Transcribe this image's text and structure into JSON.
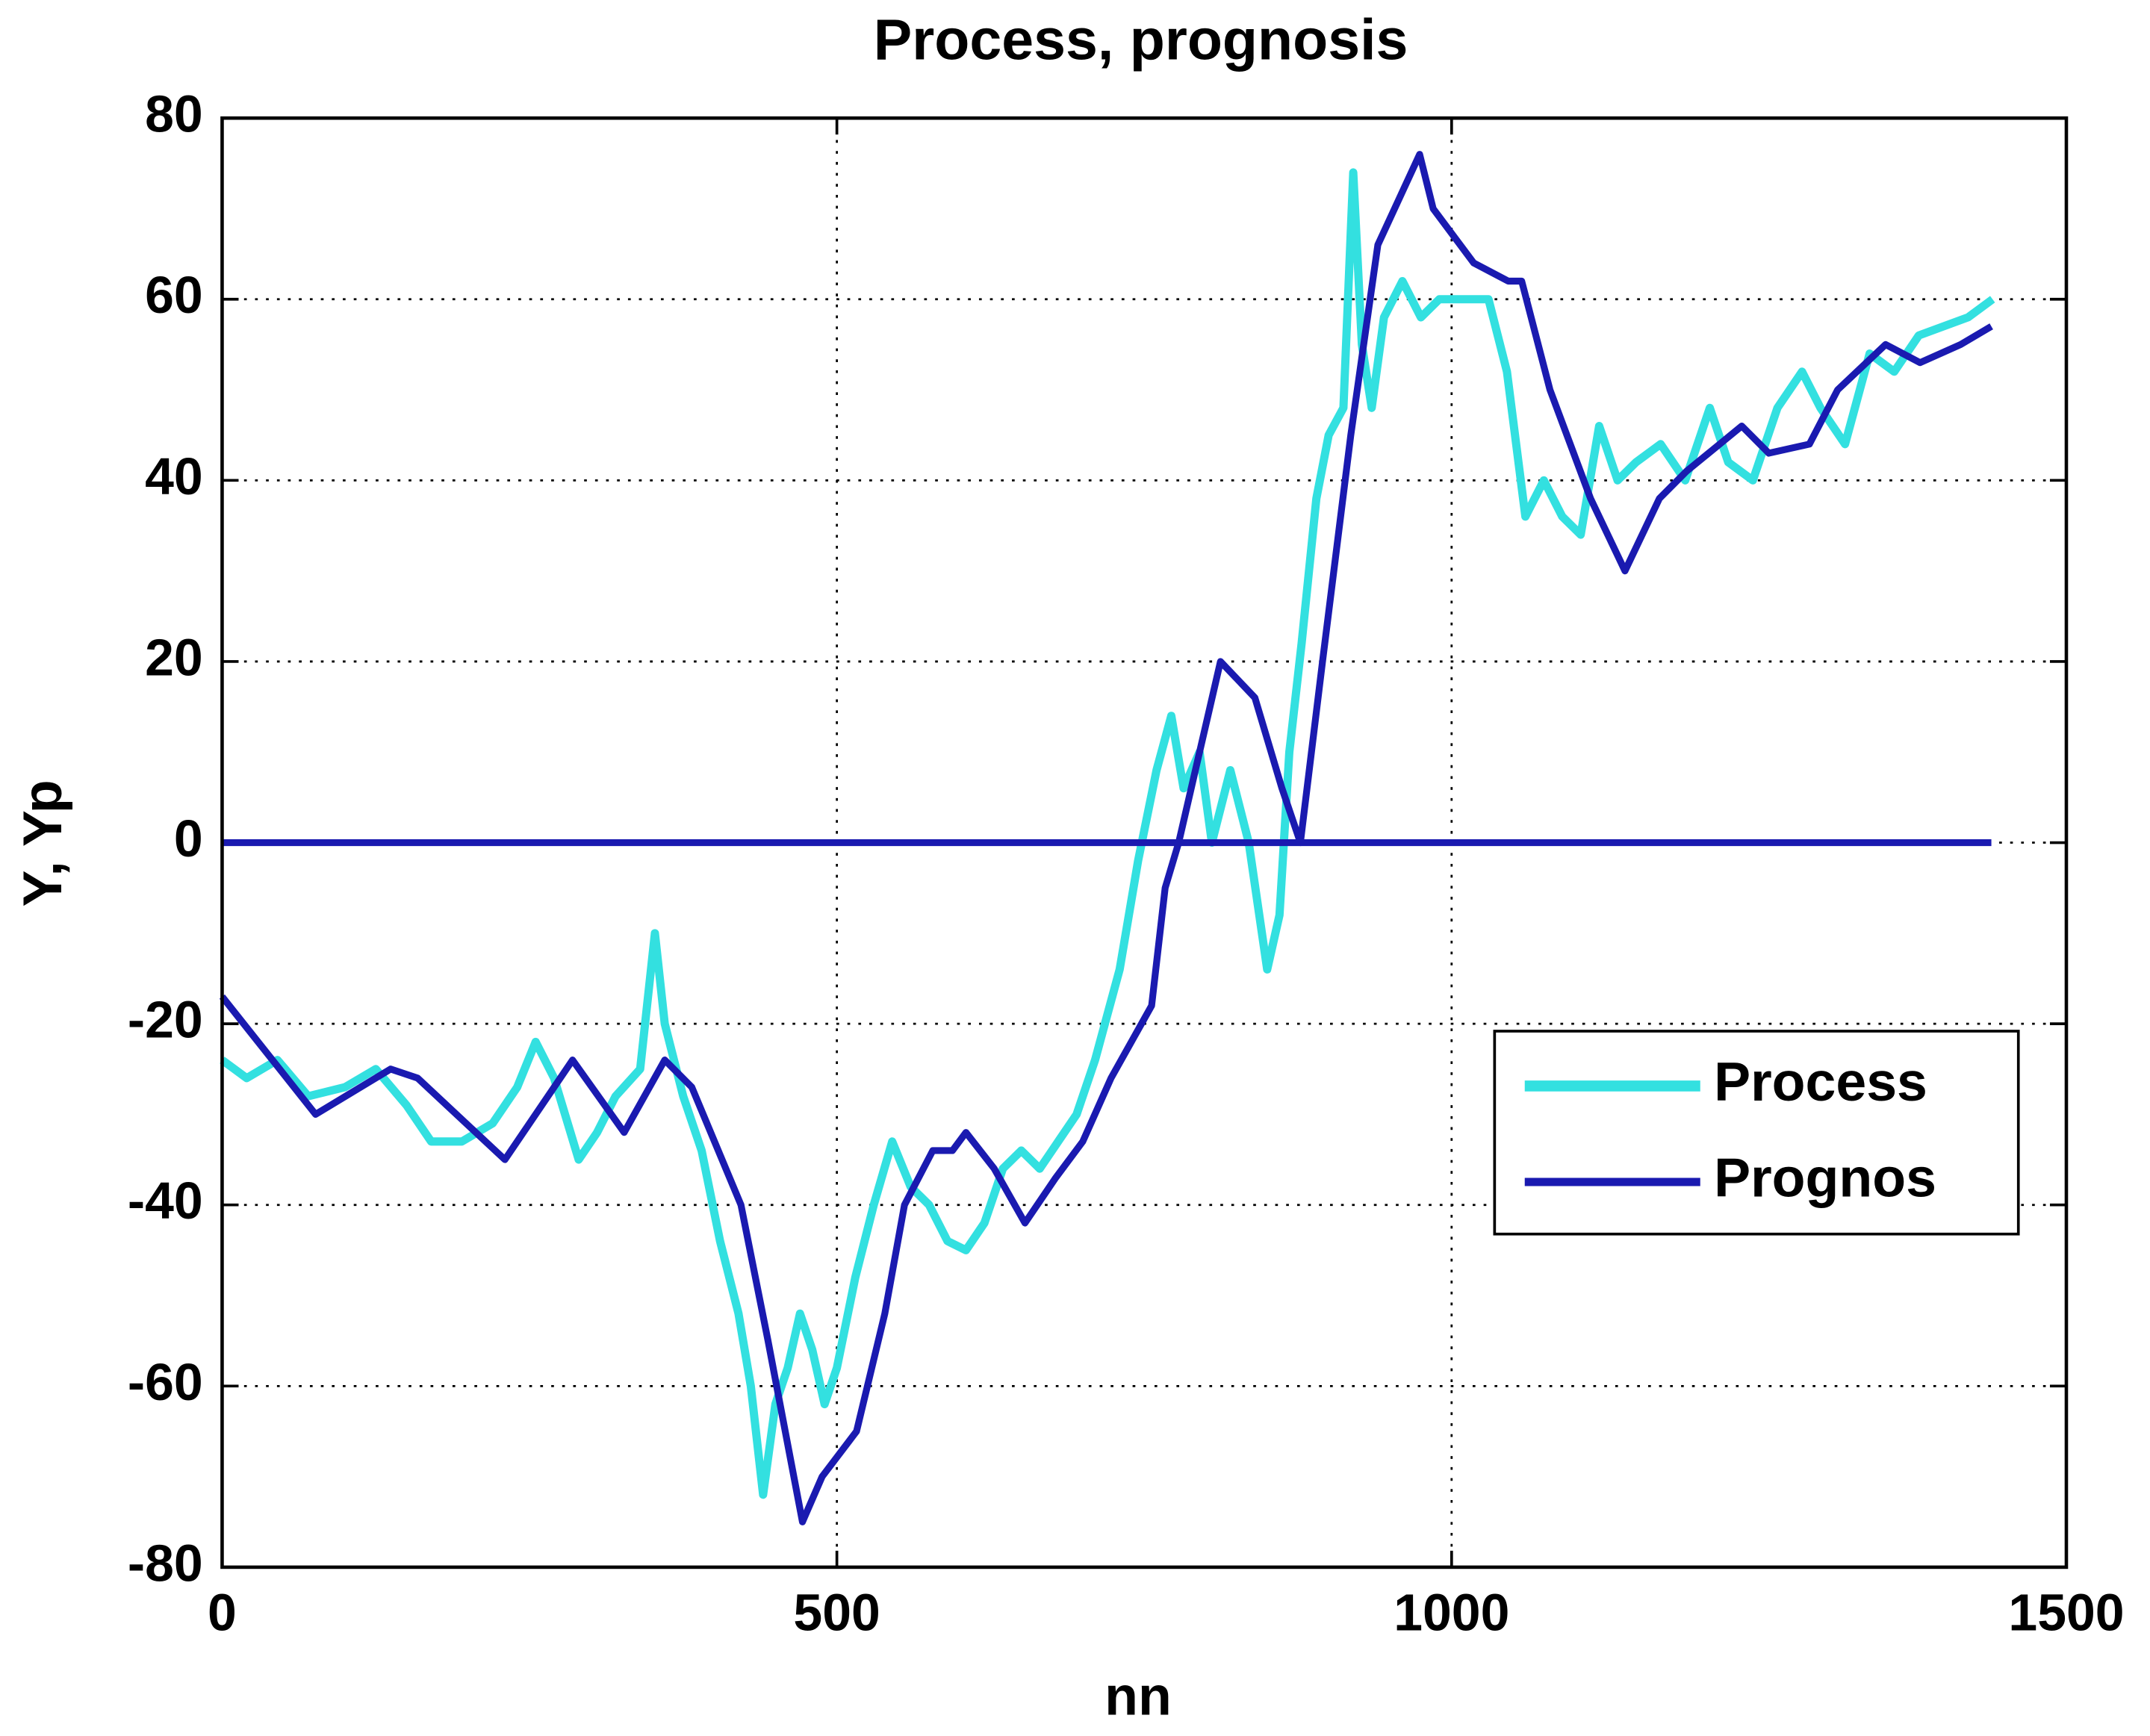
{
  "chart_data": {
    "type": "line",
    "title": "Process, prognosis",
    "xlabel": "nn",
    "ylabel": "Y, Yp",
    "xlim": [
      0,
      1500
    ],
    "ylim": [
      -80,
      80
    ],
    "xticks": [
      0,
      500,
      1000,
      1500
    ],
    "yticks": [
      -80,
      -60,
      -40,
      -20,
      0,
      20,
      40,
      60,
      80
    ],
    "grid": true,
    "legend_loc": "east",
    "series": [
      {
        "name": "Process",
        "color": "#33e0e0",
        "x": [
          0,
          20,
          45,
          70,
          100,
          125,
          150,
          170,
          195,
          220,
          240,
          255,
          270,
          290,
          305,
          320,
          340,
          352,
          360,
          375,
          390,
          405,
          420,
          430,
          440,
          450,
          460,
          470,
          480,
          490,
          500,
          515,
          530,
          545,
          560,
          575,
          590,
          605,
          620,
          635,
          650,
          665,
          680,
          695,
          710,
          730,
          745,
          760,
          772,
          782,
          795,
          805,
          820,
          835,
          850,
          860,
          868,
          878,
          890,
          900,
          912,
          920,
          927,
          935,
          945,
          960,
          975,
          990,
          1010,
          1030,
          1045,
          1060,
          1075,
          1090,
          1105,
          1120,
          1135,
          1150,
          1170,
          1190,
          1210,
          1225,
          1245,
          1265,
          1285,
          1300,
          1320,
          1340,
          1360,
          1380,
          1400,
          1420,
          1440
        ],
        "values": [
          -24,
          -26,
          -24,
          -28,
          -27,
          -25,
          -29,
          -33,
          -33,
          -31,
          -27,
          -22,
          -26,
          -35,
          -32,
          -28,
          -25,
          -10,
          -20,
          -28,
          -34,
          -44,
          -52,
          -60,
          -72,
          -62,
          -58,
          -52,
          -56,
          -62,
          -58,
          -48,
          -40,
          -33,
          -38,
          -40,
          -44,
          -45,
          -42,
          -36,
          -34,
          -36,
          -33,
          -30,
          -24,
          -14,
          -2,
          8,
          14,
          6,
          10,
          0,
          8,
          0,
          -14,
          -8,
          10,
          22,
          38,
          45,
          48,
          74,
          55,
          48,
          58,
          62,
          58,
          60,
          60,
          60,
          52,
          36,
          40,
          36,
          34,
          46,
          40,
          42,
          44,
          40,
          48,
          42,
          40,
          48,
          52,
          48,
          44,
          54,
          52,
          56,
          57,
          58,
          60
        ]
      },
      {
        "name": "Prognos",
        "color": "#1a1ab0",
        "x": [
          0,
          76,
          137,
          159,
          230,
          285,
          327,
          360,
          382,
          422,
          444,
          472,
          488,
          516,
          539,
          555,
          578,
          594,
          605,
          628,
          653,
          678,
          700,
          723,
          756,
          767,
          778,
          812,
          840,
          862,
          877,
          895,
          918,
          940,
          974,
          985,
          1018,
          1046,
          1057,
          1080,
          1113,
          1141,
          1169,
          1191,
          1236,
          1258,
          1291,
          1314,
          1353,
          1381,
          1414,
          1439
        ],
        "values": [
          -17,
          -30,
          -25,
          -26,
          -35,
          -24,
          -32,
          -24,
          -27,
          -40,
          -55,
          -75,
          -70,
          -65,
          -52,
          -40,
          -34,
          -34,
          -32,
          -36,
          -42,
          -37,
          -33,
          -26,
          -18,
          -5,
          0,
          20,
          16,
          6,
          0,
          20,
          45,
          66,
          76,
          70,
          64,
          62,
          62,
          50,
          38,
          30,
          38,
          41,
          46,
          43,
          44,
          50,
          55,
          53,
          55,
          57
        ]
      },
      {
        "color": "#1a1ab0",
        "x": [
          0,
          1439
        ],
        "values": [
          0,
          0
        ]
      }
    ]
  }
}
